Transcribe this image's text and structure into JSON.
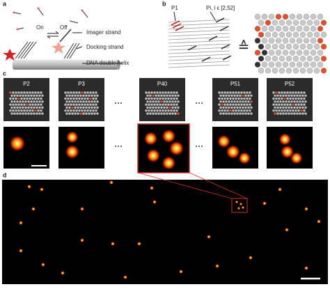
{
  "labels": [
    "a",
    "b",
    "c",
    "d"
  ],
  "panel_a": {
    "on": "On",
    "off": "Off",
    "imager": "Imager strand",
    "docking": "Docking strand",
    "helix": "DNA double helix"
  },
  "panel_b": {
    "p1": "P1",
    "pi": "Pi, i ϵ [2,52]",
    "equiv": "≙"
  },
  "panel_c": {
    "frames": [
      "P2",
      "P3",
      "P40",
      "P51",
      "P52"
    ]
  }
}
